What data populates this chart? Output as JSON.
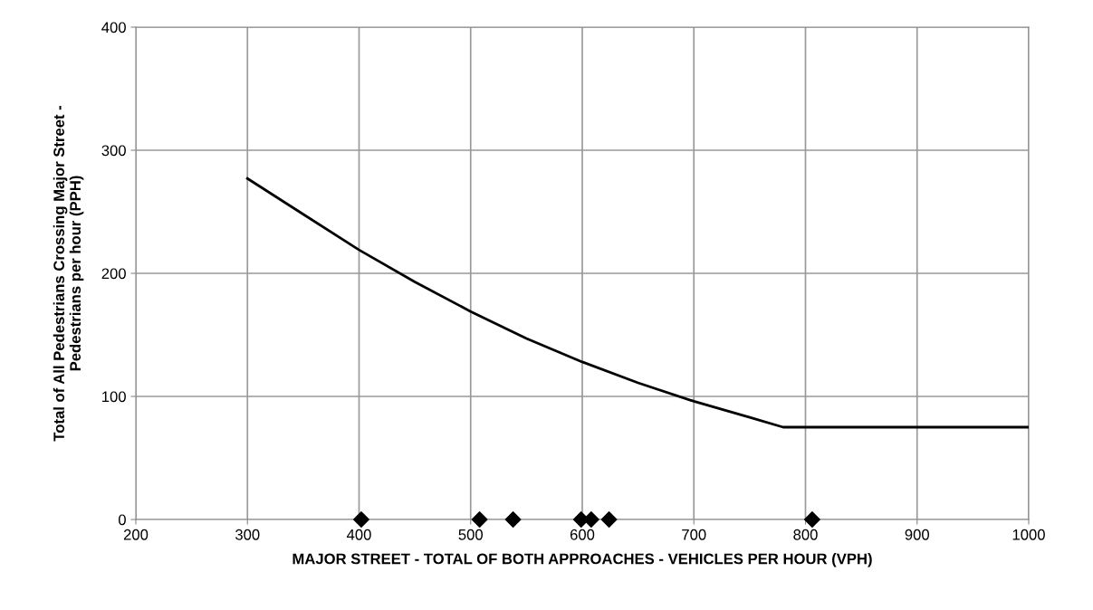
{
  "chart_data": {
    "type": "line",
    "xlabel": "MAJOR STREET - TOTAL OF BOTH APPROACHES - VEHICLES PER HOUR (VPH)",
    "ylabel": "Total of All Pedestrians Crossing Major Street -\nPedestrians per hour (PPH)",
    "xlim": [
      200,
      1000
    ],
    "xticks": [
      200,
      300,
      400,
      500,
      600,
      700,
      800,
      900,
      1000
    ],
    "ylim": [
      0,
      400
    ],
    "yticks": [
      0,
      100,
      200,
      300,
      400
    ],
    "grid": true,
    "legend": false,
    "series": [
      {
        "color": "#000000",
        "marker": "none",
        "line_style": "solid",
        "x": [
          300,
          350,
          400,
          450,
          500,
          550,
          600,
          650,
          700,
          750,
          780,
          1000
        ],
        "values": [
          277,
          248,
          219,
          193,
          169,
          147,
          128,
          111,
          96,
          83,
          75,
          75
        ]
      },
      {
        "type": "scatter",
        "color": "#000000",
        "marker": "diamond",
        "x": [
          402,
          508,
          538,
          599,
          608,
          624,
          806
        ],
        "values": [
          0,
          0,
          0,
          0,
          0,
          0,
          0
        ]
      }
    ]
  }
}
